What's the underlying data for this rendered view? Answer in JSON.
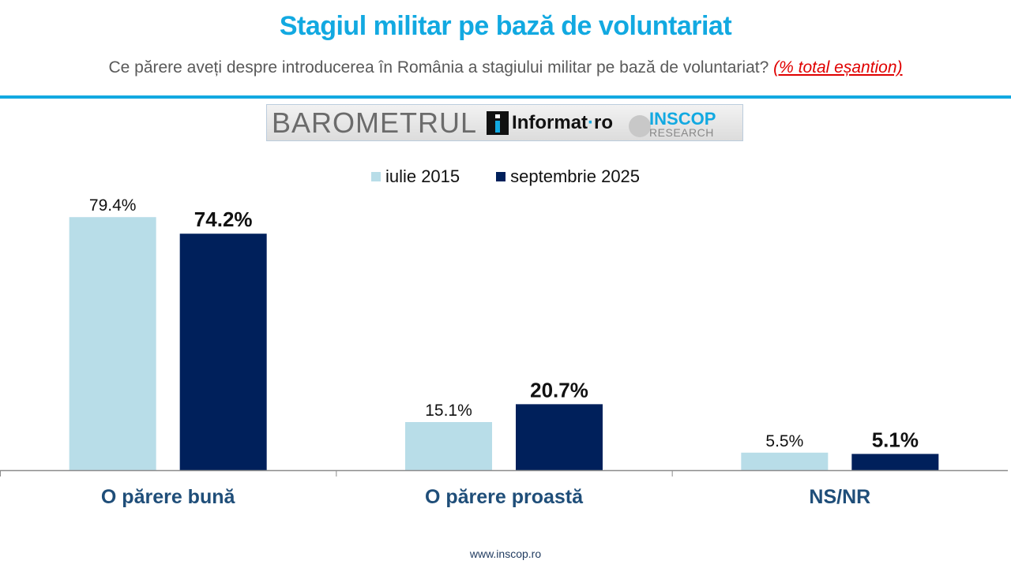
{
  "title": "Stagiul militar pe bază de voluntariat",
  "subtitle": {
    "question": "Ce părere aveți despre introducerea în România a stagiului militar pe bază de voluntariat? ",
    "note": "(% total eșantion)"
  },
  "banner": {
    "barometru": "BAROMETRUL",
    "informat": "Informat",
    "informat_dot": "·",
    "informat_tld": "ro",
    "inscop": "INSCOP",
    "research": "RESEARCH"
  },
  "colors": {
    "accent": "#12a9e1",
    "series1": "#b8dde8",
    "series2": "#00205b",
    "category": "#1f4e79",
    "note": "#e00000"
  },
  "footer": "www.inscop.ro",
  "chart_data": {
    "type": "bar",
    "title": "Stagiul militar pe bază de voluntariat",
    "categories": [
      "O părere bună",
      "O părere proastă",
      "NS/NR"
    ],
    "series": [
      {
        "name": "iulie 2015",
        "values": [
          79.4,
          15.1,
          5.5
        ],
        "labels": [
          "79.4%",
          "15.1%",
          "5.5%"
        ],
        "color": "#b8dde8"
      },
      {
        "name": "septembrie 2025",
        "values": [
          74.2,
          20.7,
          5.1
        ],
        "labels": [
          "74.2%",
          "20.7%",
          "5.1%"
        ],
        "color": "#00205b"
      }
    ],
    "xlabel": "",
    "ylabel": "",
    "ylim": [
      0,
      100
    ],
    "grid": false,
    "legend": "top-center",
    "data_labels": true
  }
}
